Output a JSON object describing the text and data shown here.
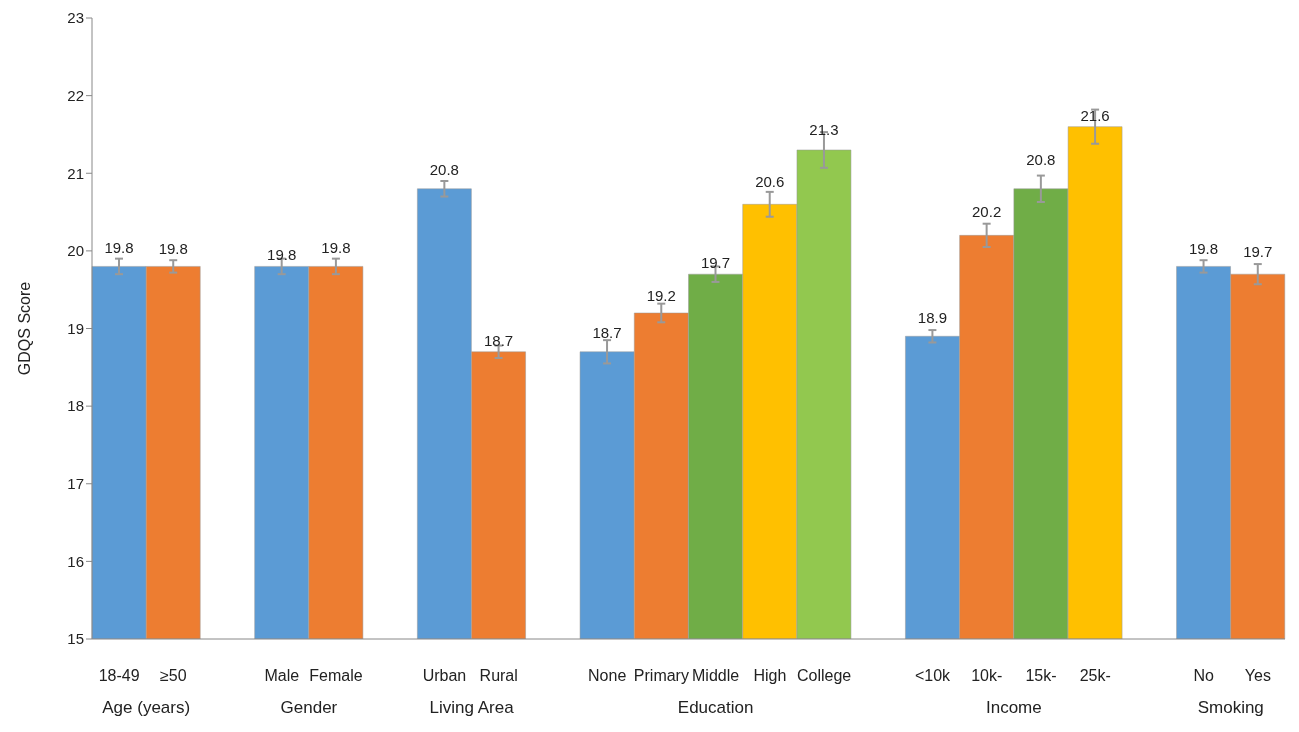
{
  "chart_data": {
    "type": "bar",
    "ylabel": "GDQS Score",
    "categories": [
      "18-49",
      "≥50",
      null,
      "Male",
      "Female",
      null,
      "Urban",
      "Rural",
      null,
      "None",
      "Primary",
      "Middle",
      "High",
      "College",
      null,
      "<10k",
      "10k-",
      "15k-",
      "25k-",
      null,
      "No",
      "Yes"
    ],
    "values": [
      19.8,
      19.8,
      null,
      19.8,
      19.8,
      null,
      20.8,
      18.7,
      null,
      18.7,
      19.2,
      19.7,
      20.6,
      21.3,
      null,
      18.9,
      20.2,
      20.8,
      21.6,
      null,
      19.8,
      19.7
    ],
    "errors": [
      0.1,
      0.08,
      null,
      0.1,
      0.1,
      null,
      0.1,
      0.08,
      null,
      0.15,
      0.12,
      0.1,
      0.16,
      0.23,
      null,
      0.08,
      0.15,
      0.17,
      0.22,
      null,
      0.08,
      0.13
    ],
    "colors": [
      "#5b9bd5",
      "#ed7d31",
      null,
      "#5b9bd5",
      "#ed7d31",
      null,
      "#5b9bd5",
      "#ed7d31",
      null,
      "#5b9bd5",
      "#ed7d31",
      "#70ad47",
      "#ffc000",
      "#92c84f",
      null,
      "#5b9bd5",
      "#ed7d31",
      "#70ad47",
      "#ffc000",
      null,
      "#5b9bd5",
      "#ed7d31"
    ],
    "annotations": [
      "Age (years)",
      "Gender",
      "Living Area",
      "Education",
      "Income",
      "Smoking"
    ],
    "ylim": [
      15,
      23
    ],
    "yticks": [
      15,
      16,
      17,
      18,
      19,
      20,
      21,
      22,
      23
    ],
    "grid": false,
    "legend": false,
    "data_labels": true
  }
}
